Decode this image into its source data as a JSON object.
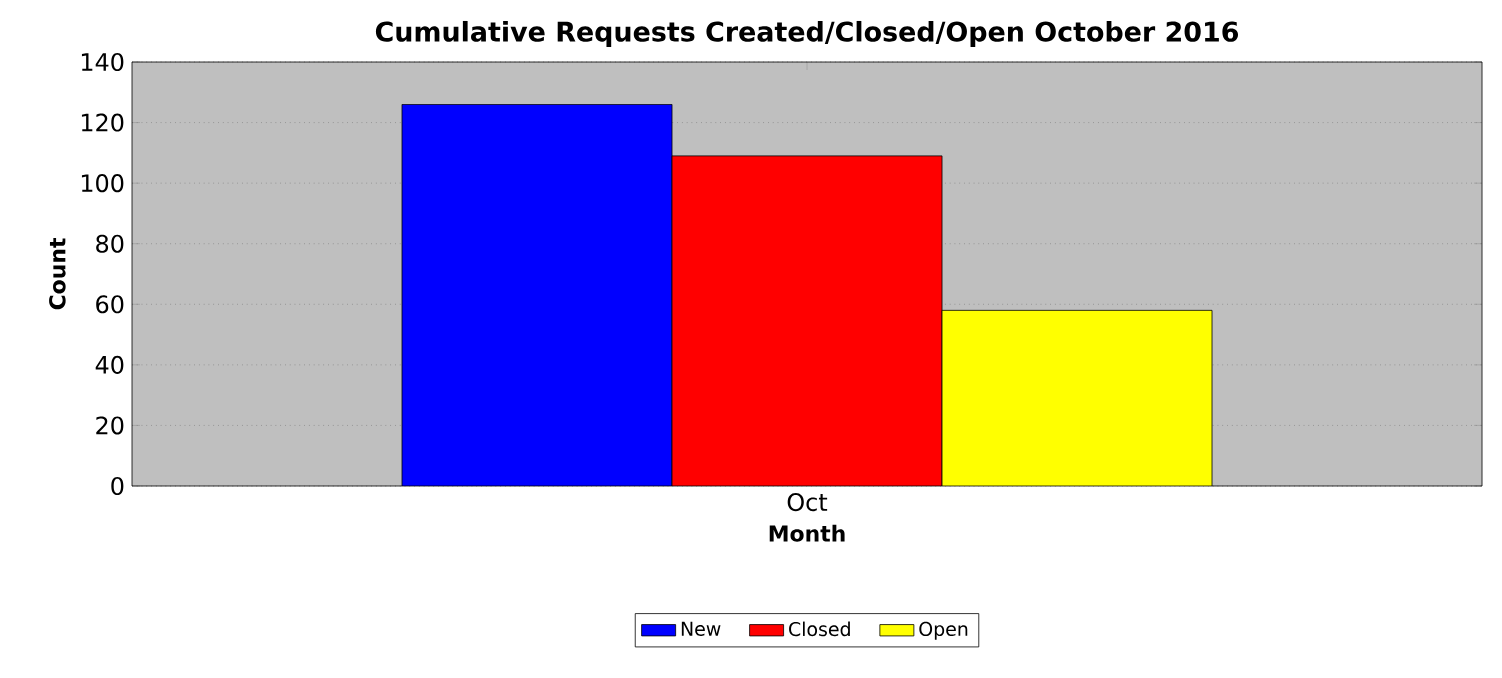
{
  "chart_data": {
    "type": "bar",
    "title": "Cumulative Requests Created/Closed/Open October 2016",
    "xlabel": "Month",
    "ylabel": "Count",
    "categories": [
      "Oct"
    ],
    "series": [
      {
        "name": "New",
        "color": "#0000ff",
        "values": [
          126
        ]
      },
      {
        "name": "Closed",
        "color": "#ff0000",
        "values": [
          109
        ]
      },
      {
        "name": "Open",
        "color": "#ffff00",
        "values": [
          58
        ]
      }
    ],
    "ylim": [
      0,
      140
    ],
    "yticks": [
      0,
      20,
      40,
      60,
      80,
      100,
      120,
      140
    ],
    "grid": "y",
    "legend": "bottom"
  }
}
